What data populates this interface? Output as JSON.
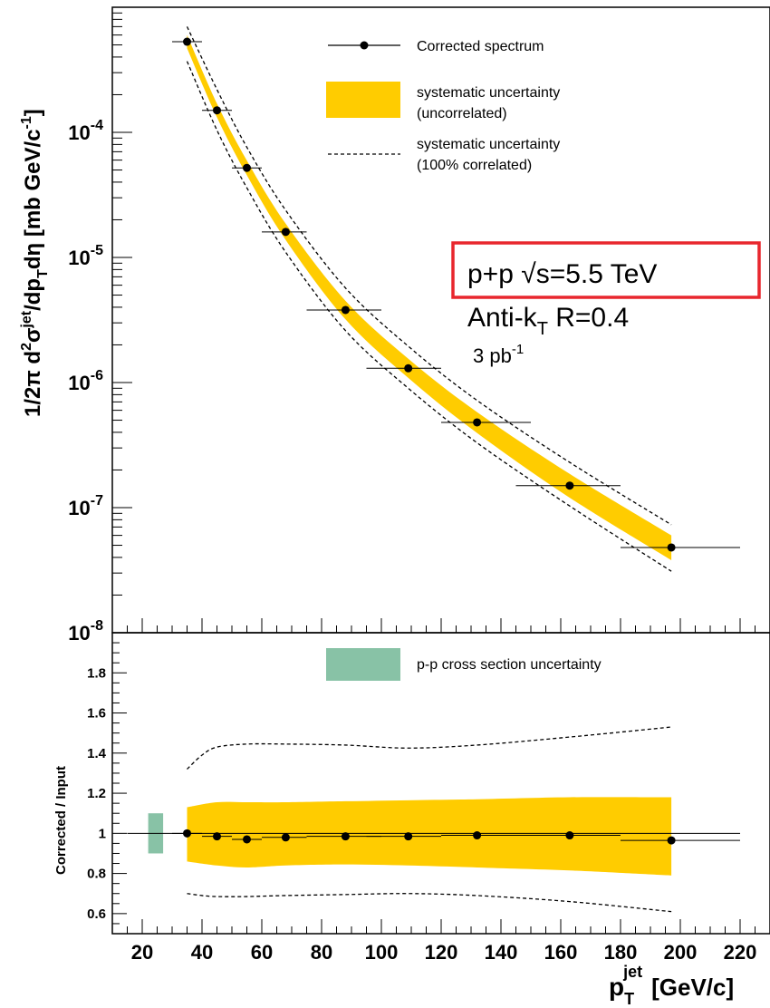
{
  "chart_data": [
    {
      "type": "scatter",
      "panel": "top",
      "xlabel_base": "p",
      "xlabel_sub": "T",
      "xlabel_sup": "jet",
      "xlabel_unit": "[GeV/c]",
      "ylabel": "1/2π d²σ^jet/dp_T dη [mb GeV/c⁻¹]",
      "yscale": "log",
      "ylim": [
        1e-08,
        0.001
      ],
      "xlim": [
        10,
        230
      ],
      "ytick_labels": [
        {
          "base": "10",
          "exp": "-8",
          "value": 1e-08
        },
        {
          "base": "10",
          "exp": "-7",
          "value": 1e-07
        },
        {
          "base": "10",
          "exp": "-6",
          "value": 1e-06
        },
        {
          "base": "10",
          "exp": "-5",
          "value": 1e-05
        },
        {
          "base": "10",
          "exp": "-4",
          "value": 0.0001
        }
      ],
      "series": [
        {
          "name": "Corrected spectrum",
          "x": [
            35,
            45,
            55,
            68,
            88,
            109,
            132,
            163,
            197
          ],
          "y": [
            0.00053,
            0.00015,
            5.2e-05,
            1.6e-05,
            3.8e-06,
            1.3e-06,
            4.8e-07,
            1.5e-07,
            4.8e-08
          ],
          "xerr_low": [
            30,
            40,
            50,
            60,
            75,
            95,
            120,
            145,
            180
          ],
          "xerr_high": [
            40,
            50,
            60,
            75,
            100,
            120,
            150,
            180,
            220
          ]
        }
      ],
      "band_uncorrelated": {
        "name": "systematic uncertainty (uncorrelated)",
        "x": [
          35,
          45,
          55,
          68,
          88,
          109,
          132,
          163,
          197
        ],
        "low": [
          0.00047,
          0.000132,
          4.55e-05,
          1.38e-05,
          3.2e-06,
          1.09e-06,
          3.95e-07,
          1.2e-07,
          3.8e-08
        ],
        "high": [
          0.0006,
          0.00017,
          5.95e-05,
          1.86e-05,
          4.5e-06,
          1.55e-06,
          5.8e-07,
          1.86e-07,
          6e-08
        ]
      },
      "band_correlated": {
        "name": "systematic uncertainty (100% correlated)",
        "x": [
          35,
          45,
          55,
          68,
          88,
          109,
          132,
          163,
          197
        ],
        "low": [
          0.00037,
          0.000104,
          3.6e-05,
          1.1e-05,
          2.6e-06,
          9e-07,
          3.3e-07,
          1.03e-07,
          3.1e-08
        ],
        "high": [
          0.0007,
          0.00022,
          7.6e-05,
          2.38e-05,
          5.7e-06,
          1.95e-06,
          7.2e-07,
          2.3e-07,
          7.3e-08
        ]
      },
      "legend": [
        {
          "kind": "marker",
          "label_line1": "Corrected spectrum",
          "label_line2": ""
        },
        {
          "kind": "band",
          "label_line1": "systematic uncertainty",
          "label_line2": "(uncorrelated)"
        },
        {
          "kind": "dashed",
          "label_line1": "systematic uncertainty",
          "label_line2": "(100% correlated)"
        }
      ],
      "annotations": {
        "line1": "p+p √s=5.5 TeV",
        "line2_base": "Anti-k",
        "line2_sub": "T",
        "line2_rest": " R=0.4",
        "line3_base": "3 pb",
        "line3_sup": "-1"
      }
    },
    {
      "type": "scatter",
      "panel": "bottom",
      "ylabel": "Corrected / Input",
      "ylim": [
        0.5,
        2.0
      ],
      "xlim": [
        10,
        230
      ],
      "ytick_labels": [
        "0.6",
        "0.8",
        "1",
        "1.2",
        "1.4",
        "1.6",
        "1.8"
      ],
      "ytick_values": [
        0.6,
        0.8,
        1.0,
        1.2,
        1.4,
        1.6,
        1.8
      ],
      "xtick_labels": [
        "20",
        "40",
        "60",
        "80",
        "100",
        "120",
        "140",
        "160",
        "180",
        "200",
        "220"
      ],
      "xtick_values": [
        20,
        40,
        60,
        80,
        100,
        120,
        140,
        160,
        180,
        200,
        220
      ],
      "series": [
        {
          "name": "Corrected / Input",
          "x": [
            35,
            45,
            55,
            68,
            88,
            109,
            132,
            163,
            197
          ],
          "y": [
            1.0,
            0.985,
            0.97,
            0.98,
            0.985,
            0.985,
            0.99,
            0.99,
            0.965
          ],
          "xerr_low": [
            30,
            40,
            50,
            60,
            75,
            95,
            120,
            145,
            180
          ],
          "xerr_high": [
            40,
            50,
            60,
            75,
            100,
            120,
            150,
            180,
            220
          ]
        }
      ],
      "band_uncorrelated": {
        "x": [
          35,
          45,
          55,
          68,
          88,
          109,
          132,
          163,
          197
        ],
        "low": [
          0.86,
          0.84,
          0.83,
          0.84,
          0.845,
          0.84,
          0.83,
          0.815,
          0.79
        ],
        "high": [
          1.13,
          1.155,
          1.155,
          1.155,
          1.16,
          1.165,
          1.17,
          1.18,
          1.18
        ]
      },
      "band_correlated": {
        "x": [
          35,
          40,
          45,
          55,
          68,
          88,
          109,
          132,
          163,
          197
        ],
        "low": [
          0.7,
          0.69,
          0.685,
          0.685,
          0.69,
          0.695,
          0.7,
          0.69,
          0.66,
          0.61
        ],
        "high": [
          1.32,
          1.39,
          1.43,
          1.445,
          1.445,
          1.44,
          1.425,
          1.44,
          1.48,
          1.53
        ]
      },
      "pp_uncertainty": {
        "x_low": 22,
        "x_high": 27,
        "low": 0.9,
        "high": 1.1
      },
      "reference_line": 1.0,
      "legend": [
        {
          "kind": "box",
          "label": "p-p cross section uncertainty"
        }
      ]
    }
  ],
  "colors": {
    "band": "#ffcc00",
    "pp_box": "#88c2a6",
    "highlight_box": "#e8262d",
    "marker": "#000000"
  }
}
